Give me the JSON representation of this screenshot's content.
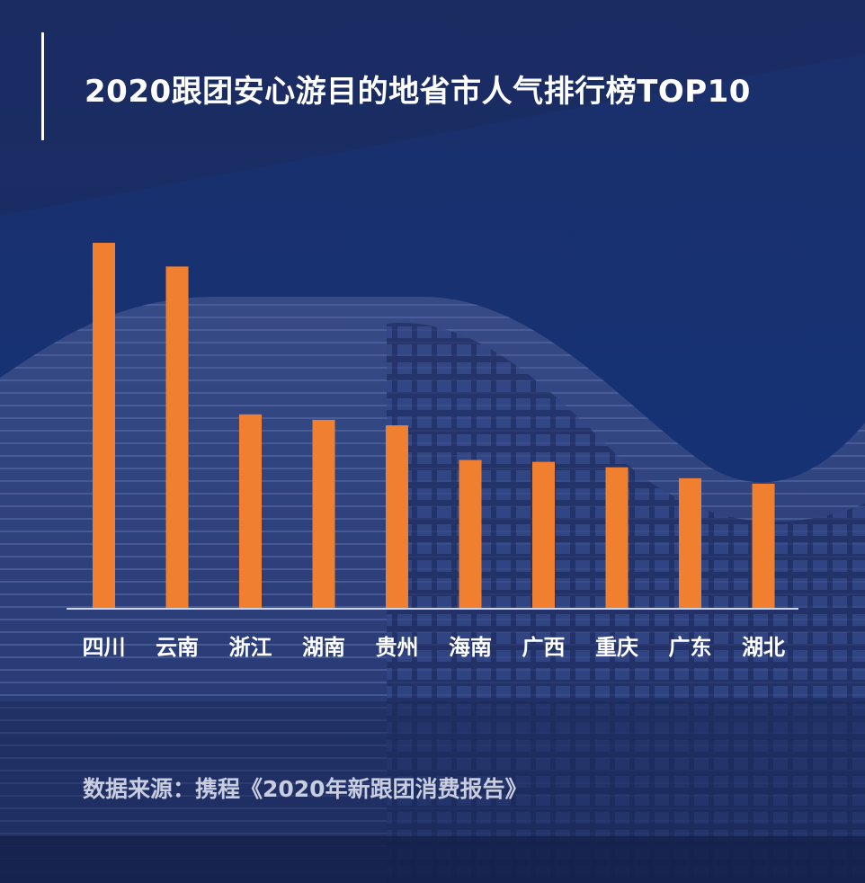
{
  "title": "2020跟团安心游目的地省市人气排行榜TOP10",
  "source": "数据来源：携程《2020年新跟团消费报告》",
  "colors": {
    "background": "#16306e",
    "bar": "#f08030",
    "axis": "#cfd3e6",
    "text": "#ffffff"
  },
  "chart_data": {
    "type": "bar",
    "title": "2020跟团安心游目的地省市人气排行榜TOP10",
    "categories": [
      "四川",
      "云南",
      "浙江",
      "湖南",
      "贵州",
      "海南",
      "广西",
      "重庆",
      "广东",
      "湖北"
    ],
    "values": [
      100,
      93.5,
      53,
      51.5,
      50,
      40.5,
      40,
      38.5,
      35.5,
      34
    ],
    "xlabel": "",
    "ylabel": "",
    "ylim": [
      0,
      100
    ],
    "grid": false,
    "legend": "none"
  }
}
